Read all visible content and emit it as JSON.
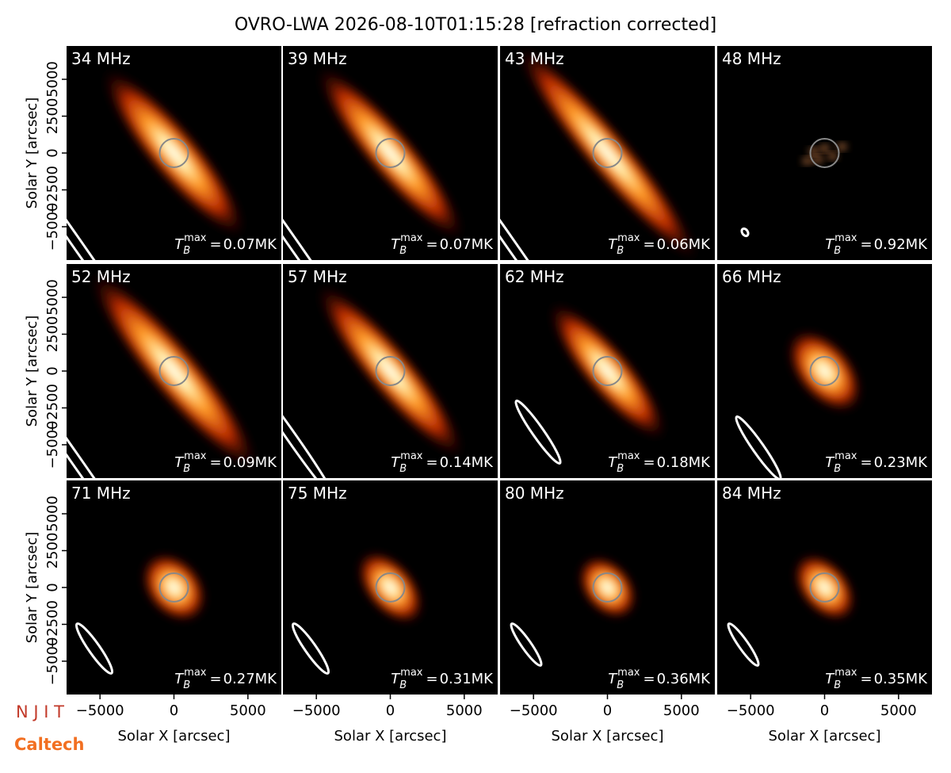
{
  "title": "OVRO-LWA 2026-08-10T01:15:28 [refraction corrected]",
  "x_label": "Solar X [arcsec]",
  "y_label": "Solar Y [arcsec]",
  "xlim": [
    -7260,
    7260
  ],
  "ylim": [
    -7260,
    7260
  ],
  "xticks": [
    {
      "value": -5000,
      "label": "−5000"
    },
    0,
    5000
  ],
  "yticks": [
    {
      "value": -5000,
      "label": "−5000"
    },
    {
      "value": -2500,
      "label": "−2500"
    },
    0,
    2500,
    5000
  ],
  "tb_symbol": "T",
  "tb_sub": "B",
  "tb_sup": "max",
  "tb_eq": "=",
  "panels": [
    {
      "label": "34 MHz",
      "tb_max": "0.07MK"
    },
    {
      "label": "39 MHz",
      "tb_max": "0.07MK"
    },
    {
      "label": "43 MHz",
      "tb_max": "0.06MK"
    },
    {
      "label": "48 MHz",
      "tb_max": "0.92MK"
    },
    {
      "label": "52 MHz",
      "tb_max": "0.09MK"
    },
    {
      "label": "57 MHz",
      "tb_max": "0.14MK"
    },
    {
      "label": "62 MHz",
      "tb_max": "0.18MK"
    },
    {
      "label": "66 MHz",
      "tb_max": "0.23MK"
    },
    {
      "label": "71 MHz",
      "tb_max": "0.27MK"
    },
    {
      "label": "75 MHz",
      "tb_max": "0.31MK"
    },
    {
      "label": "80 MHz",
      "tb_max": "0.36MK"
    },
    {
      "label": "84 MHz",
      "tb_max": "0.35MK"
    }
  ],
  "logos": [
    "N J I T",
    "Caltech"
  ]
}
